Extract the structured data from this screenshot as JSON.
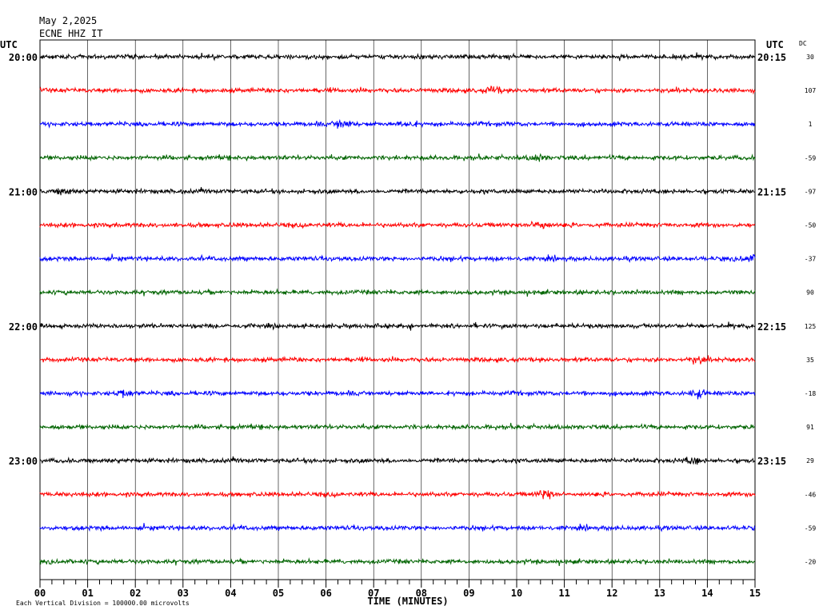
{
  "header": {
    "date": "May 2,2025",
    "station": "ECNE HHZ IT"
  },
  "chart_data": {
    "type": "line",
    "title": "May 2,2025",
    "subtitle": "ECNE HHZ IT",
    "xlabel": "TIME (MINUTES)",
    "ylabel_left": "UTC",
    "ylabel_right": "UTC",
    "dc_label": "DC",
    "footnote": "Each Vertical Division = 100000.00 microvolts",
    "x_ticks": [
      "00",
      "01",
      "02",
      "03",
      "04",
      "05",
      "06",
      "07",
      "08",
      "09",
      "10",
      "11",
      "12",
      "13",
      "14",
      "15"
    ],
    "xlim": [
      0,
      15
    ],
    "grid": true,
    "trace_colors": [
      "#000000",
      "#ff0000",
      "#0000ff",
      "#006400"
    ],
    "left_hour_labels": [
      {
        "row": 0,
        "text": "20:00"
      },
      {
        "row": 4,
        "text": "21:00"
      },
      {
        "row": 8,
        "text": "22:00"
      },
      {
        "row": 12,
        "text": "23:00"
      }
    ],
    "right_hour_labels": [
      {
        "row": 0,
        "text": "20:15"
      },
      {
        "row": 4,
        "text": "21:15"
      },
      {
        "row": 8,
        "text": "22:15"
      },
      {
        "row": 12,
        "text": "23:15"
      }
    ],
    "dc_offsets": [
      "30",
      "107",
      "1",
      "-59",
      "-97",
      "-50",
      "-37",
      "90",
      "125",
      "35",
      "-18",
      "91",
      "29",
      "-46",
      "-59",
      "-20"
    ],
    "events": [
      {
        "row": 1,
        "minute": 9.5,
        "amp": 1.6
      },
      {
        "row": 2,
        "minute": 6.35,
        "amp": 2.2
      },
      {
        "row": 2,
        "minute": 7.7,
        "amp": 1.3
      },
      {
        "row": 3,
        "minute": 10.45,
        "amp": 1.4
      },
      {
        "row": 4,
        "minute": 0.5,
        "amp": 1.3
      },
      {
        "row": 5,
        "minute": 10.5,
        "amp": 2.3
      },
      {
        "row": 6,
        "minute": 14.9,
        "amp": 1.4
      },
      {
        "row": 9,
        "minute": 13.8,
        "amp": 1.4
      },
      {
        "row": 10,
        "minute": 1.8,
        "amp": 1.5
      },
      {
        "row": 10,
        "minute": 13.8,
        "amp": 1.5
      },
      {
        "row": 12,
        "minute": 13.7,
        "amp": 1.3
      },
      {
        "row": 13,
        "minute": 10.6,
        "amp": 2.0
      }
    ]
  }
}
